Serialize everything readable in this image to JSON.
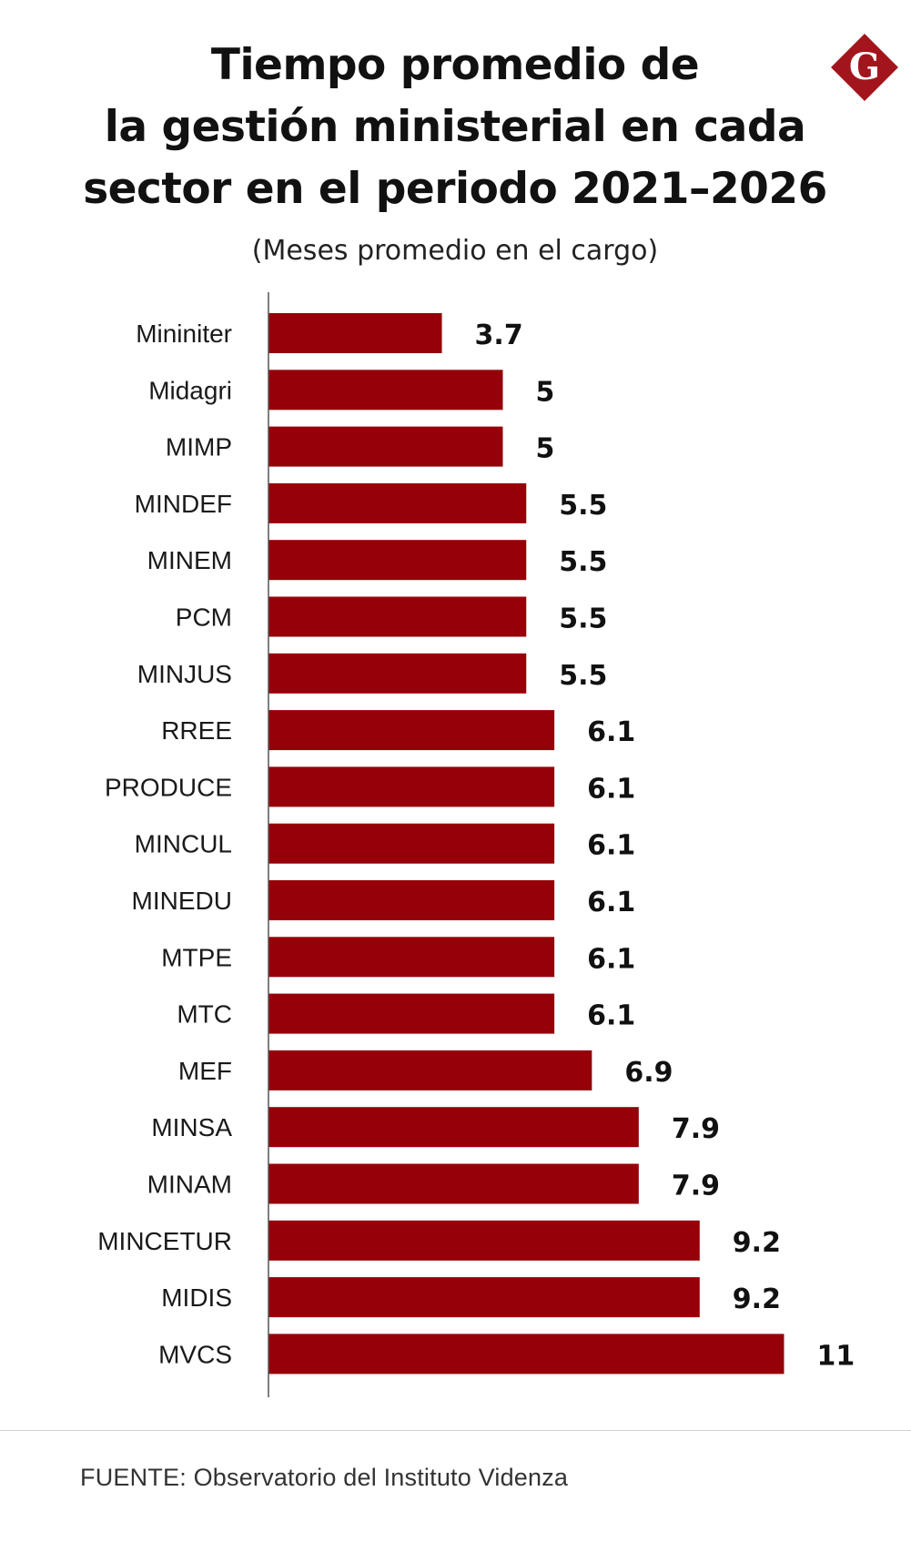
{
  "header": {
    "title_line1": "Tiempo promedio de",
    "title_line2": "la gestión ministerial en cada",
    "title_line3": "sector en el periodo 2021–2026",
    "subtitle": "(Meses promedio en el cargo)",
    "logo_letter": "G"
  },
  "colors": {
    "bar": "#960008",
    "logo": "#a3151c",
    "axis": "#555555"
  },
  "chart_data": {
    "type": "bar",
    "orientation": "horizontal",
    "title": "Tiempo promedio de la gestión ministerial en cada sector en el periodo 2021–2026",
    "subtitle": "(Meses promedio en el cargo)",
    "xlabel": "",
    "ylabel": "",
    "xlim": [
      0,
      11
    ],
    "grid": false,
    "categories": [
      "Mininiter",
      "Midagri",
      "MIMP",
      "MINDEF",
      "MINEM",
      "PCM",
      "MINJUS",
      "RREE",
      "PRODUCE",
      "MINCUL",
      "MINEDU",
      "MTPE",
      "MTC",
      "MEF",
      "MINSA",
      "MINAM",
      "MINCETUR",
      "MIDIS",
      "MVCS"
    ],
    "values": [
      3.7,
      5,
      5,
      5.5,
      5.5,
      5.5,
      5.5,
      6.1,
      6.1,
      6.1,
      6.1,
      6.1,
      6.1,
      6.9,
      7.9,
      7.9,
      9.2,
      9.2,
      11
    ],
    "value_labels": [
      "3.7",
      "5",
      "5",
      "5.5",
      "5.5",
      "5.5",
      "5.5",
      "6.1",
      "6.1",
      "6.1",
      "6.1",
      "6.1",
      "6.1",
      "6.9",
      "7.9",
      "7.9",
      "9.2",
      "9.2",
      "11"
    ]
  },
  "footer": {
    "source": "FUENTE: Observatorio del Instituto Videnza"
  }
}
